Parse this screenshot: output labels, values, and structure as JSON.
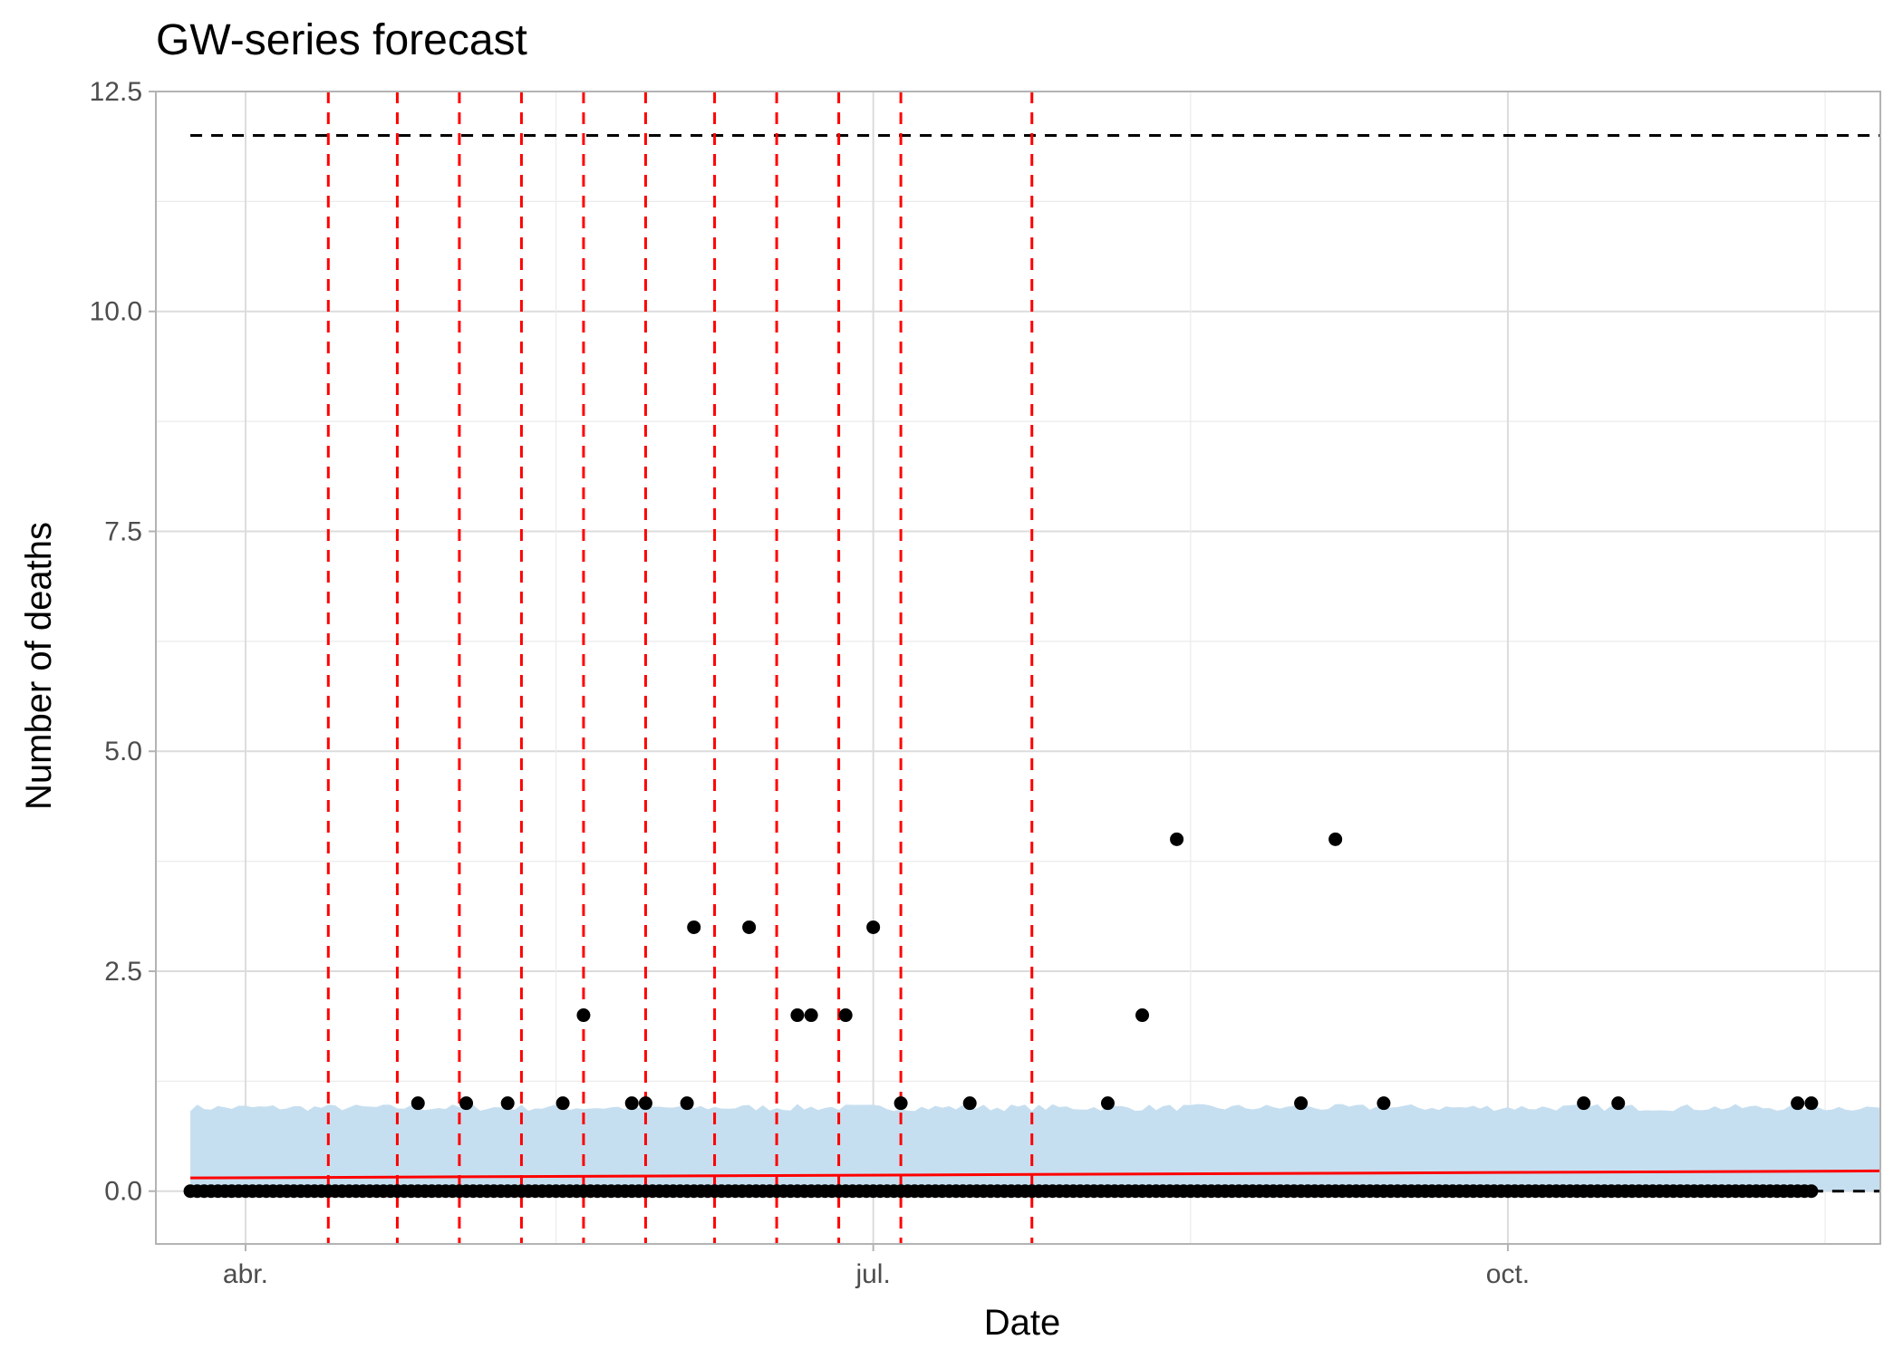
{
  "chart_data": {
    "type": "scatter",
    "title": "GW-series forecast",
    "xlabel": "Date",
    "ylabel": "Number of deaths",
    "year": 2021,
    "x_range": [
      "2021-03-19",
      "2021-11-24"
    ],
    "ylim": [
      -0.6,
      12.5
    ],
    "y_ticks": [
      0.0,
      2.5,
      5.0,
      7.5,
      10.0,
      12.5
    ],
    "y_tick_labels": [
      "0.0",
      "2.5",
      "5.0",
      "7.5",
      "10.0",
      "12.5"
    ],
    "x_ticks": [
      "2021-04-01",
      "2021-07-01",
      "2021-10-01"
    ],
    "x_tick_labels": [
      "abr.",
      "jul.",
      "oct."
    ],
    "grid": true,
    "series": [
      {
        "type": "points",
        "color": "#000000",
        "zero_run": [
          "2021-03-24",
          "2021-11-14"
        ],
        "nonzero": [
          {
            "x": "2021-04-26",
            "y": 1
          },
          {
            "x": "2021-05-03",
            "y": 1
          },
          {
            "x": "2021-05-09",
            "y": 1
          },
          {
            "x": "2021-05-17",
            "y": 1
          },
          {
            "x": "2021-05-20",
            "y": 2
          },
          {
            "x": "2021-05-27",
            "y": 1
          },
          {
            "x": "2021-05-29",
            "y": 1
          },
          {
            "x": "2021-06-04",
            "y": 1
          },
          {
            "x": "2021-06-05",
            "y": 3
          },
          {
            "x": "2021-06-13",
            "y": 3
          },
          {
            "x": "2021-06-20",
            "y": 2
          },
          {
            "x": "2021-06-22",
            "y": 2
          },
          {
            "x": "2021-06-27",
            "y": 2
          },
          {
            "x": "2021-07-01",
            "y": 3
          },
          {
            "x": "2021-07-05",
            "y": 1
          },
          {
            "x": "2021-07-15",
            "y": 1
          },
          {
            "x": "2021-08-04",
            "y": 1
          },
          {
            "x": "2021-08-09",
            "y": 2
          },
          {
            "x": "2021-08-14",
            "y": 4
          },
          {
            "x": "2021-09-01",
            "y": 1
          },
          {
            "x": "2021-09-06",
            "y": 4
          },
          {
            "x": "2021-09-13",
            "y": 1
          },
          {
            "x": "2021-10-12",
            "y": 1
          },
          {
            "x": "2021-10-17",
            "y": 1
          },
          {
            "x": "2021-11-12",
            "y": 1
          },
          {
            "x": "2021-11-14",
            "y": 1
          }
        ]
      },
      {
        "type": "line",
        "color": "#ff0000",
        "x": [
          "2021-03-24",
          "2021-11-24"
        ],
        "y": [
          0.15,
          0.23
        ]
      },
      {
        "type": "band",
        "color": "#c6dff0",
        "x": [
          "2021-03-24",
          "2021-11-24"
        ],
        "upper_approx": 0.95,
        "lower": 0.0
      }
    ],
    "hlines": [
      {
        "y": 12,
        "x": [
          "2021-03-24",
          "2021-11-24"
        ],
        "color": "#000000",
        "style": "dashed"
      },
      {
        "y": 0,
        "x": [
          "2021-11-14",
          "2021-11-24"
        ],
        "color": "#000000",
        "style": "dashed"
      }
    ],
    "vlines": {
      "color": "#ff0000",
      "style": "dashed",
      "x": [
        "2021-04-13",
        "2021-04-23",
        "2021-05-02",
        "2021-05-11",
        "2021-05-20",
        "2021-05-29",
        "2021-06-08",
        "2021-06-17",
        "2021-06-26",
        "2021-07-05",
        "2021-07-24"
      ]
    }
  }
}
